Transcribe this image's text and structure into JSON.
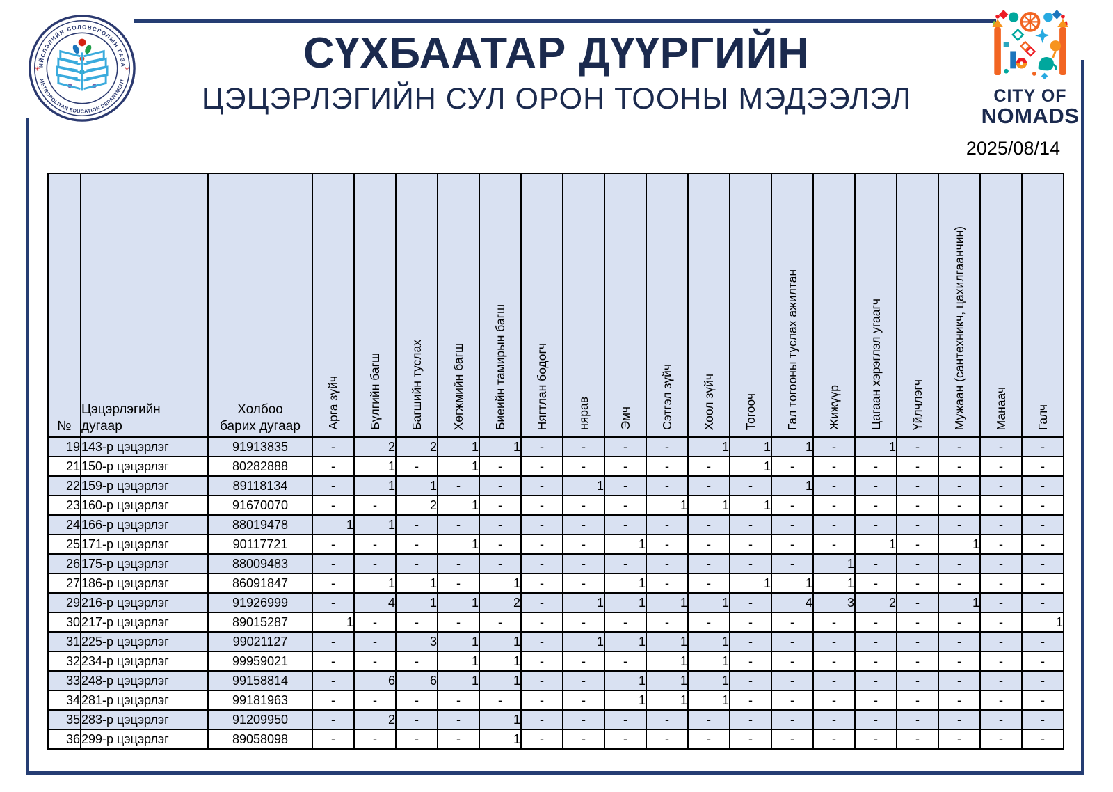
{
  "header": {
    "title": "СҮХБААТАР ДҮҮРГИЙН",
    "subtitle": "ЦЭЦЭРЛЭГИЙН СУЛ ОРОН ТООНЫ МЭДЭЭЛЭЛ",
    "date": "2025/08/14"
  },
  "logos": {
    "left": {
      "ring_top": "НИЙСЛЭЛИЙН БОЛОВСРОЛЫН ГАЗАР",
      "ring_bottom": "METROPOLITAN EDUCATION DEPARTMENT",
      "star": "✳"
    },
    "right": {
      "line1": "CITY OF",
      "line2": "NOMADS"
    }
  },
  "colors": {
    "frame_navy": "#253d73",
    "title_navy": "#1b2a4e",
    "row_shade": "#d9e1f2",
    "table_border": "#000000"
  },
  "table": {
    "fixed_headers": [
      "№",
      "Цэцэрлэгийн\nдугаар",
      "Холбоо\nбарих дугаар"
    ],
    "rotated_headers": [
      "Арга зүйч",
      "Бүлгийн багш",
      "Багшийн туслах",
      "Хөгжмийн багш",
      "Биеийн тамирын багш",
      "Нягтлан бодогч",
      "нярав",
      "Эмч",
      "Сэтгэл зүйч",
      "Хоол зүйч",
      "Тогооч",
      "Гал тогооны туслах ажилтан",
      "Жижүүр",
      "Цагаан хэрэглэл угаагч",
      "Үйлчлэгч",
      "Мужаан (сантехникч, цахилгаанчин)",
      "Манаач",
      "Галч"
    ],
    "rows": [
      {
        "no": "19",
        "name": "143-р цэцэрлэг",
        "phone": "91913835",
        "values": [
          "-",
          "2",
          "2",
          "1",
          "1",
          "-",
          "-",
          "-",
          "-",
          "1",
          "1",
          "1",
          "-",
          "1",
          "-",
          "-",
          "-",
          "-"
        ]
      },
      {
        "no": "21",
        "name": "150-р цэцэрлэг",
        "phone": "80282888",
        "values": [
          "-",
          "1",
          "-",
          "1",
          "-",
          "-",
          "-",
          "-",
          "-",
          "-",
          "1",
          "-",
          "-",
          "-",
          "-",
          "-",
          "-",
          "-"
        ]
      },
      {
        "no": "22",
        "name": "159-р цэцэрлэг",
        "phone": "89118134",
        "values": [
          "-",
          "1",
          "1",
          "-",
          "-",
          "-",
          "1",
          "-",
          "-",
          "-",
          "-",
          "1",
          "-",
          "-",
          "-",
          "-",
          "-",
          "-"
        ]
      },
      {
        "no": "23",
        "name": "160-р цэцэрлэг",
        "phone": "91670070",
        "values": [
          "-",
          "-",
          "2",
          "1",
          "-",
          "-",
          "-",
          "-",
          "1",
          "1",
          "1",
          "-",
          "-",
          "-",
          "-",
          "-",
          "-",
          "-"
        ]
      },
      {
        "no": "24",
        "name": "166-р цэцэрлэг",
        "phone": "88019478",
        "values": [
          "1",
          "1",
          "-",
          "-",
          "-",
          "-",
          "-",
          "-",
          "-",
          "-",
          "-",
          "-",
          "-",
          "-",
          "-",
          "-",
          "-",
          "-"
        ]
      },
      {
        "no": "25",
        "name": "171-р цэцэрлэг",
        "phone": "90117721",
        "values": [
          "-",
          "-",
          "-",
          "1",
          "-",
          "-",
          "-",
          "1",
          "-",
          "-",
          "-",
          "-",
          "-",
          "1",
          "-",
          "1",
          "-",
          "-"
        ]
      },
      {
        "no": "26",
        "name": "175-р цэцэрлэг",
        "phone": "88009483",
        "values": [
          "-",
          "-",
          "-",
          "-",
          "-",
          "-",
          "-",
          "-",
          "-",
          "-",
          "-",
          "-",
          "1",
          "-",
          "-",
          "-",
          "-",
          "-"
        ]
      },
      {
        "no": "27",
        "name": "186-р цэцэрлэг",
        "phone": "86091847",
        "values": [
          "-",
          "1",
          "1",
          "-",
          "1",
          "-",
          "-",
          "1",
          "-",
          "-",
          "1",
          "1",
          "1",
          "-",
          "-",
          "-",
          "-",
          "-"
        ]
      },
      {
        "no": "29",
        "name": "216-р цэцэрлэг",
        "phone": "91926999",
        "values": [
          "-",
          "4",
          "1",
          "1",
          "2",
          "-",
          "1",
          "1",
          "1",
          "1",
          "-",
          "4",
          "3",
          "2",
          "-",
          "1",
          "-",
          "-"
        ]
      },
      {
        "no": "30",
        "name": "217-р цэцэрлэг",
        "phone": "89015287",
        "values": [
          "1",
          "-",
          "-",
          "-",
          "-",
          "-",
          "-",
          "-",
          "-",
          "-",
          "-",
          "-",
          "-",
          "-",
          "-",
          "-",
          "-",
          "1"
        ]
      },
      {
        "no": "31",
        "name": "225-р цэцэрлэг",
        "phone": "99021127",
        "values": [
          "-",
          "-",
          "3",
          "1",
          "1",
          "-",
          "1",
          "1",
          "1",
          "1",
          "-",
          "-",
          "-",
          "-",
          "-",
          "-",
          "-",
          "-"
        ]
      },
      {
        "no": "32",
        "name": "234-р цэцэрлэг",
        "phone": "99959021",
        "values": [
          "-",
          "-",
          "-",
          "1",
          "1",
          "-",
          "-",
          "-",
          "1",
          "1",
          "-",
          "-",
          "-",
          "-",
          "-",
          "-",
          "-",
          "-"
        ]
      },
      {
        "no": "33",
        "name": "248-р цэцэрлэг",
        "phone": "99158814",
        "values": [
          "-",
          "6",
          "6",
          "1",
          "1",
          "-",
          "-",
          "1",
          "1",
          "1",
          "-",
          "-",
          "-",
          "-",
          "-",
          "-",
          "-",
          "-"
        ]
      },
      {
        "no": "34",
        "name": "281-р цэцэрлэг",
        "phone": "99181963",
        "values": [
          "-",
          "-",
          "-",
          "-",
          "-",
          "-",
          "-",
          "1",
          "1",
          "1",
          "-",
          "-",
          "-",
          "-",
          "-",
          "-",
          "-",
          "-"
        ]
      },
      {
        "no": "35",
        "name": "283-р цэцэрлэг",
        "phone": "91209950",
        "values": [
          "-",
          "2",
          "-",
          "-",
          "1",
          "-",
          "-",
          "-",
          "-",
          "-",
          "-",
          "-",
          "-",
          "-",
          "-",
          "-",
          "-",
          "-"
        ]
      },
      {
        "no": "36",
        "name": "299-р цэцэрлэг",
        "phone": "89058098",
        "values": [
          "-",
          "-",
          "-",
          "-",
          "1",
          "-",
          "-",
          "-",
          "-",
          "-",
          "-",
          "-",
          "-",
          "-",
          "-",
          "-",
          "-",
          "-"
        ]
      }
    ]
  }
}
